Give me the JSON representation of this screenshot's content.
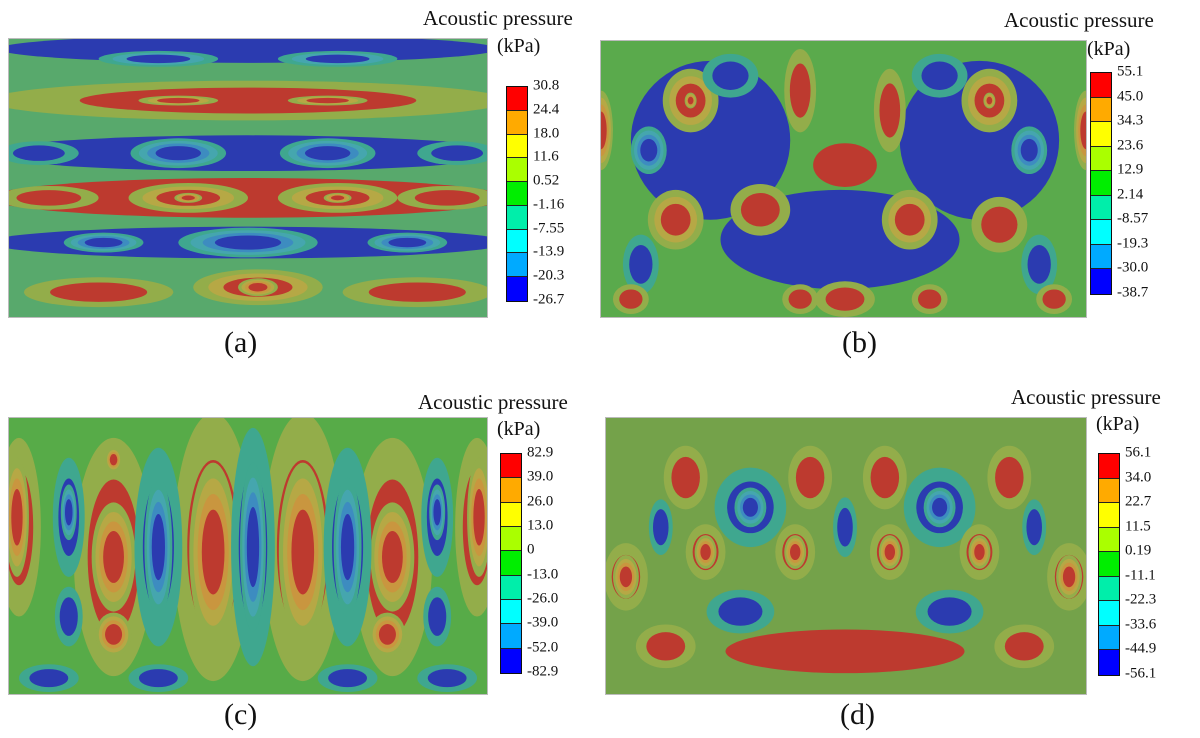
{
  "legend_colors": [
    "#ff0000",
    "#ffaa00",
    "#ffff00",
    "#aaff00",
    "#00ee00",
    "#00eeaa",
    "#00ffff",
    "#00aaff",
    "#0000ff"
  ],
  "chart_data": [
    {
      "type": "heatmap",
      "panel": "(a)",
      "title": "Acoustic pressure",
      "unit": "(kPa)",
      "levels": [
        "30.8",
        "24.4",
        "18.0",
        "11.6",
        "0.52",
        "-1.16",
        "-7.55",
        "-13.9",
        "-20.3",
        "-26.7"
      ],
      "legend": "right"
    },
    {
      "type": "heatmap",
      "panel": "(b)",
      "title": "Acoustic pressure",
      "unit": "(kPa)",
      "levels": [
        "55.1",
        "45.0",
        "34.3",
        "23.6",
        "12.9",
        "2.14",
        "-8.57",
        "-19.3",
        "-30.0",
        "-38.7"
      ],
      "legend": "right"
    },
    {
      "type": "heatmap",
      "panel": "(c)",
      "title": "Acoustic pressure",
      "unit": "(kPa)",
      "levels": [
        "82.9",
        "39.0",
        "26.0",
        "13.0",
        "0",
        "-13.0",
        "-26.0",
        "-39.0",
        "-52.0",
        "-82.9"
      ],
      "legend": "right"
    },
    {
      "type": "heatmap",
      "panel": "(d)",
      "title": "Acoustic pressure",
      "unit": "(kPa)",
      "levels": [
        "56.1",
        "34.0",
        "22.7",
        "11.5",
        "0.19",
        "-11.1",
        "-22.3",
        "-33.6",
        "-44.9",
        "-56.1"
      ],
      "legend": "right"
    }
  ]
}
